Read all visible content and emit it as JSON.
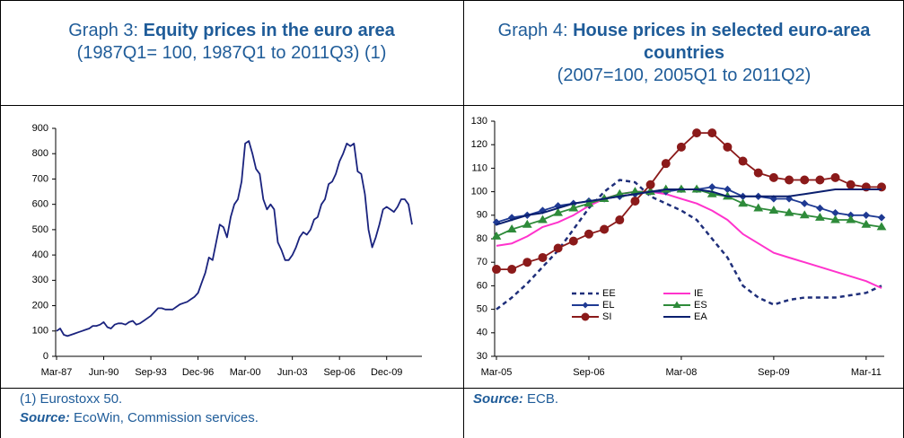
{
  "chart_data": [
    {
      "type": "line",
      "label": "Graph 3:",
      "title": "Equity prices in the euro area",
      "subtitle": "(1987Q1= 100, 1987Q1 to 2011Q3) (1)",
      "notes": [
        "(1) Eurostoxx 50."
      ],
      "source_label": "Source:",
      "source": "EcoWin, Commission services.",
      "categories": [
        "Mar-87",
        null,
        null,
        null,
        null,
        null,
        null,
        null,
        null,
        null,
        null,
        null,
        null,
        "Jun-90",
        null,
        null,
        null,
        null,
        null,
        null,
        null,
        null,
        null,
        null,
        null,
        null,
        "Sep-93",
        null,
        null,
        null,
        null,
        null,
        null,
        null,
        null,
        null,
        null,
        null,
        null,
        "Dec-96",
        null,
        null,
        null,
        null,
        null,
        null,
        null,
        null,
        null,
        null,
        null,
        null,
        "Mar-00",
        null,
        null,
        null,
        null,
        null,
        null,
        null,
        null,
        null,
        null,
        null,
        null,
        "Jun-03",
        null,
        null,
        null,
        null,
        null,
        null,
        null,
        null,
        null,
        null,
        null,
        null,
        "Sep-06",
        null,
        null,
        null,
        null,
        null,
        null,
        null,
        null,
        null,
        null,
        null,
        null,
        "Dec-09",
        null,
        null,
        null,
        null,
        null,
        null,
        null
      ],
      "values": [
        100,
        110,
        85,
        80,
        85,
        90,
        95,
        100,
        105,
        110,
        120,
        120,
        125,
        135,
        115,
        110,
        125,
        130,
        130,
        125,
        135,
        140,
        125,
        130,
        140,
        150,
        160,
        175,
        190,
        190,
        185,
        185,
        185,
        195,
        205,
        210,
        215,
        225,
        235,
        250,
        290,
        330,
        390,
        380,
        450,
        520,
        510,
        470,
        550,
        600,
        620,
        690,
        840,
        850,
        800,
        740,
        720,
        620,
        580,
        600,
        580,
        450,
        420,
        380,
        380,
        400,
        430,
        470,
        490,
        480,
        500,
        540,
        550,
        600,
        620,
        680,
        690,
        720,
        770,
        800,
        840,
        830,
        840,
        730,
        720,
        640,
        500,
        430,
        470,
        520,
        580,
        590,
        580,
        570,
        590,
        620,
        620,
        600,
        520
      ],
      "color": "#1a237e",
      "ylim": [
        0,
        900
      ],
      "yticks": [
        0,
        100,
        200,
        300,
        400,
        500,
        600,
        700,
        800,
        900
      ]
    },
    {
      "type": "line",
      "label": "Graph 4:",
      "title": "House prices in selected euro-area countries",
      "subtitle": "(2007=100, 2005Q1 to 2011Q2)",
      "notes": [],
      "source_label": "Source:",
      "source": "ECB.",
      "categories": [
        "Mar-05",
        null,
        null,
        null,
        null,
        null,
        "Sep-06",
        null,
        null,
        null,
        null,
        null,
        "Mar-08",
        null,
        null,
        null,
        null,
        null,
        "Sep-09",
        null,
        null,
        null,
        null,
        null,
        "Mar-11",
        null
      ],
      "ylim": [
        30,
        130
      ],
      "yticks": [
        30,
        40,
        50,
        60,
        70,
        80,
        90,
        100,
        110,
        120,
        130
      ],
      "series": [
        {
          "name": "EE",
          "color": "#1f2f7a",
          "dash": true,
          "marker": "none",
          "values": [
            50,
            55,
            61,
            68,
            75,
            84,
            93,
            100,
            105,
            104,
            98,
            95,
            92,
            88,
            80,
            72,
            60,
            55,
            52,
            54,
            55,
            55,
            55,
            56,
            57,
            60
          ]
        },
        {
          "name": "IE",
          "color": "#ff33cc",
          "dash": false,
          "marker": "none",
          "values": [
            77,
            78,
            81,
            85,
            87,
            90,
            94,
            97,
            99,
            100,
            100,
            99,
            97,
            95,
            92,
            88,
            82,
            78,
            74,
            72,
            70,
            68,
            66,
            64,
            62,
            59
          ]
        },
        {
          "name": "EL",
          "color": "#1f3a93",
          "dash": false,
          "marker": "diamond",
          "values": [
            87,
            89,
            90,
            92,
            94,
            95,
            96,
            97,
            98,
            99,
            100,
            100,
            101,
            101,
            102,
            101,
            98,
            98,
            97,
            97,
            95,
            93,
            91,
            90,
            90,
            89
          ]
        },
        {
          "name": "ES",
          "color": "#2e8b3a",
          "dash": false,
          "marker": "triangle",
          "values": [
            81,
            84,
            86,
            88,
            91,
            93,
            95,
            97,
            99,
            100,
            100,
            101,
            101,
            101,
            99,
            98,
            95,
            93,
            92,
            91,
            90,
            89,
            88,
            88,
            86,
            85
          ]
        },
        {
          "name": "SI",
          "color": "#8b1a1a",
          "dash": false,
          "marker": "circle",
          "values": [
            67,
            67,
            70,
            72,
            76,
            79,
            82,
            84,
            88,
            96,
            103,
            112,
            119,
            125,
            125,
            119,
            113,
            108,
            106,
            105,
            105,
            105,
            106,
            103,
            102,
            102
          ]
        },
        {
          "name": "EA",
          "color": "#0a1f6e",
          "dash": false,
          "marker": "none",
          "values": [
            86,
            88,
            90,
            91,
            93,
            95,
            96,
            97,
            98,
            99,
            100,
            101,
            101,
            101,
            100,
            98,
            98,
            98,
            98,
            98,
            99,
            100,
            101,
            101,
            101,
            101
          ]
        }
      ]
    }
  ]
}
